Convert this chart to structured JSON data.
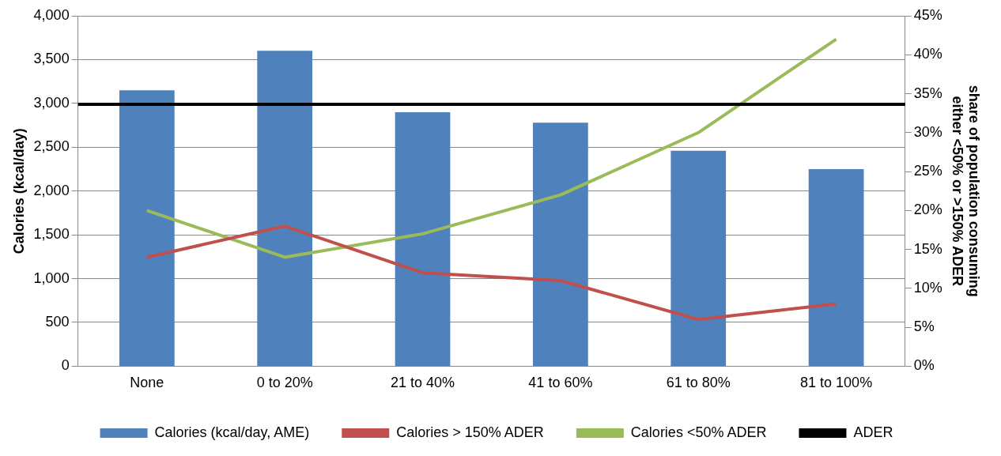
{
  "chart_data": {
    "type": "bar",
    "xlabel": null,
    "ylabel": "Calories (kcal/day)",
    "y2label": "share of population consuming either <50% or >150% ADER",
    "categories": [
      "None",
      "0 to 20%",
      "21 to 40%",
      "41 to 60%",
      "61 to 80%",
      "81 to 100%"
    ],
    "series": [
      {
        "name": "Calories (kcal/day, AME)",
        "color": "#4f81bd",
        "values": [
          3150,
          3600,
          2900,
          2780,
          2460,
          2250
        ]
      },
      {
        "name": "Calories > 150% ADER",
        "color": "#c0504d",
        "type": "line",
        "axis": "y2",
        "values": [
          14,
          18,
          12,
          11,
          6,
          8
        ]
      },
      {
        "name": "Calories <50% ADER",
        "color": "#9bbb59",
        "type": "line",
        "axis": "y2",
        "values": [
          20,
          14,
          17,
          22,
          30,
          42
        ]
      }
    ],
    "ref_lines": [
      {
        "axis": "y",
        "value": 2990,
        "label": "ADER",
        "color": "#000000"
      }
    ],
    "ylim": [
      0,
      4000
    ],
    "yticks": [
      {
        "value": 0,
        "label": "0"
      },
      {
        "value": 500,
        "label": "500"
      },
      {
        "value": 1000,
        "label": "1,000"
      },
      {
        "value": 1500,
        "label": "1,500"
      },
      {
        "value": 2000,
        "label": "2,000"
      },
      {
        "value": 2500,
        "label": "2,500"
      },
      {
        "value": 3000,
        "label": "3,000"
      },
      {
        "value": 3500,
        "label": "3,500"
      },
      {
        "value": 4000,
        "label": "4,000"
      }
    ],
    "y2lim": [
      0,
      45
    ],
    "y2ticks": [
      {
        "value": 0,
        "label": "0%"
      },
      {
        "value": 5,
        "label": "5%"
      },
      {
        "value": 10,
        "label": "10%"
      },
      {
        "value": 15,
        "label": "15%"
      },
      {
        "value": 20,
        "label": "20%"
      },
      {
        "value": 25,
        "label": "25%"
      },
      {
        "value": 30,
        "label": "30%"
      },
      {
        "value": 35,
        "label": "35%"
      },
      {
        "value": 40,
        "label": "40%"
      },
      {
        "value": 45,
        "label": "45%"
      }
    ],
    "grid": "y",
    "legend": "bottom"
  }
}
